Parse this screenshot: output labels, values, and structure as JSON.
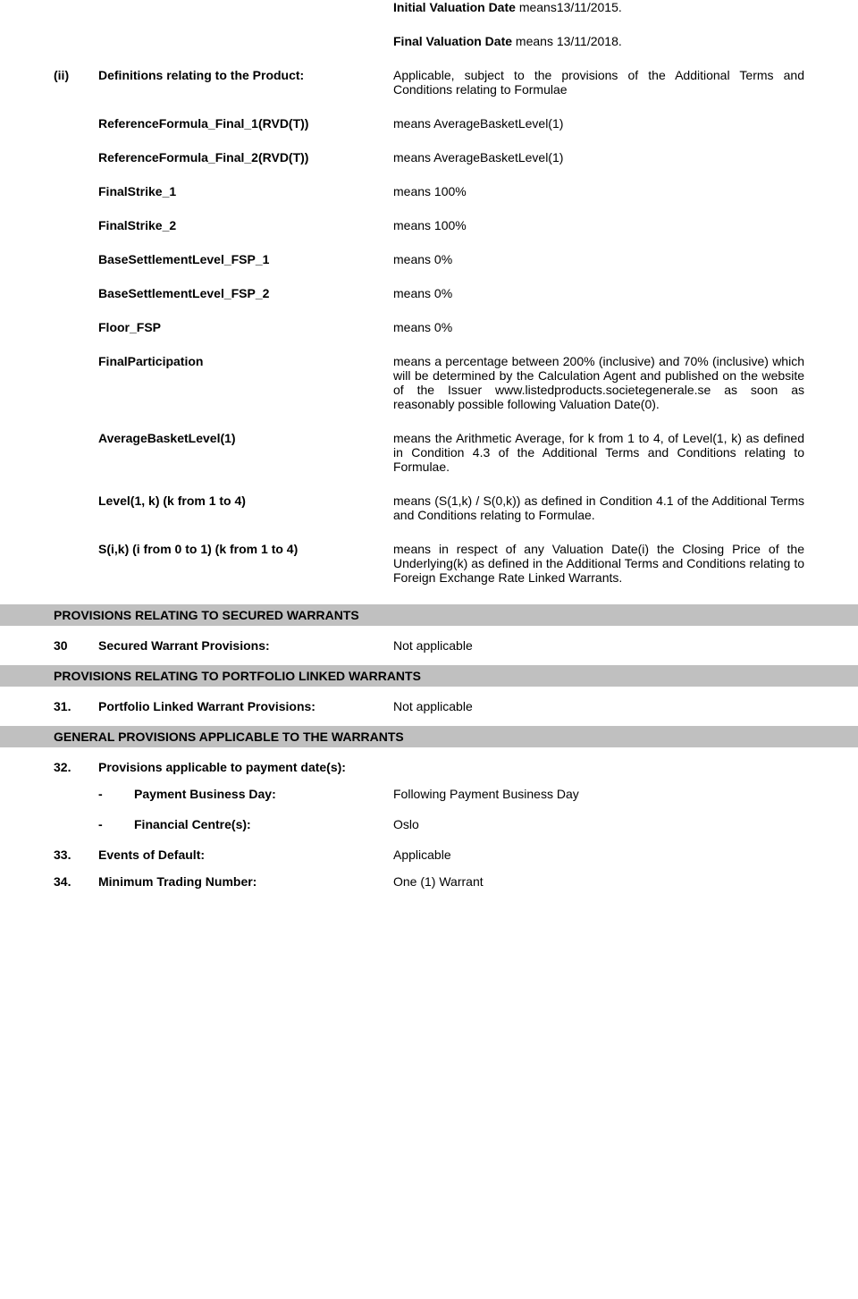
{
  "intro": {
    "initial_valuation_prefix": "Initial Valuation Date ",
    "initial_valuation_value": "means13/11/2015.",
    "final_valuation_prefix": "Final Valuation Date ",
    "final_valuation_value": "means 13/11/2018."
  },
  "roman": "(ii)",
  "definitions": [
    {
      "label": "Definitions relating to the Product:",
      "value": "Applicable, subject to the provisions of the Additional Terms and Conditions relating to Formulae"
    },
    {
      "label": "ReferenceFormula_Final_1(RVD(T))",
      "value": "means AverageBasketLevel(1)"
    },
    {
      "label": "ReferenceFormula_Final_2(RVD(T))",
      "value": "means AverageBasketLevel(1)"
    },
    {
      "label": "FinalStrike_1",
      "value": "means 100%"
    },
    {
      "label": "FinalStrike_2",
      "value": "means 100%"
    },
    {
      "label": "BaseSettlementLevel_FSP_1",
      "value": "means 0%"
    },
    {
      "label": "BaseSettlementLevel_FSP_2",
      "value": "means 0%"
    },
    {
      "label": "Floor_FSP",
      "value": "means 0%"
    },
    {
      "label": "FinalParticipation",
      "value": "means a percentage between 200% (inclusive) and 70% (inclusive) which will be determined by the Calculation Agent and published on the website of the Issuer www.listedproducts.societegenerale.se  as soon as reasonably possible following Valuation Date(0)."
    },
    {
      "label": "AverageBasketLevel(1)",
      "value": "means the Arithmetic Average, for k from 1 to 4, of Level(1, k) as defined in Condition 4.3 of the Additional Terms and Conditions relating to Formulae."
    },
    {
      "label": "Level(1, k) (k from 1 to 4)",
      "value": "means (S(1,k) / S(0,k)) as defined in Condition 4.1 of the Additional Terms and Conditions relating to Formulae."
    },
    {
      "label": "S(i,k) (i from 0 to 1) (k from 1 to 4)",
      "value": "means in respect of any Valuation Date(i) the Closing Price of the Underlying(k) as defined in the Additional Terms and Conditions relating to Foreign Exchange Rate Linked Warrants."
    }
  ],
  "sec1": {
    "title": "PROVISIONS RELATING TO SECURED WARRANTS"
  },
  "item30": {
    "num": "30",
    "label": "Secured Warrant Provisions:",
    "value": "Not applicable"
  },
  "sec2": {
    "title": "PROVISIONS RELATING TO PORTFOLIO LINKED WARRANTS"
  },
  "item31": {
    "num": "31.",
    "label": "Portfolio Linked Warrant Provisions:",
    "value": "Not applicable"
  },
  "sec3": {
    "title": "GENERAL PROVISIONS APPLICABLE TO THE WARRANTS"
  },
  "item32": {
    "num": "32.",
    "label": "Provisions applicable to payment date(s):",
    "sub": [
      {
        "dash": "-",
        "label": "Payment Business Day:",
        "value": "Following Payment Business Day"
      },
      {
        "dash": "-",
        "label": "Financial Centre(s):",
        "value": "Oslo"
      }
    ]
  },
  "item33": {
    "num": "33.",
    "label": "Events of Default:",
    "value": "Applicable"
  },
  "item34": {
    "num": "34.",
    "label": "Minimum Trading Number:",
    "value": "One (1) Warrant"
  }
}
